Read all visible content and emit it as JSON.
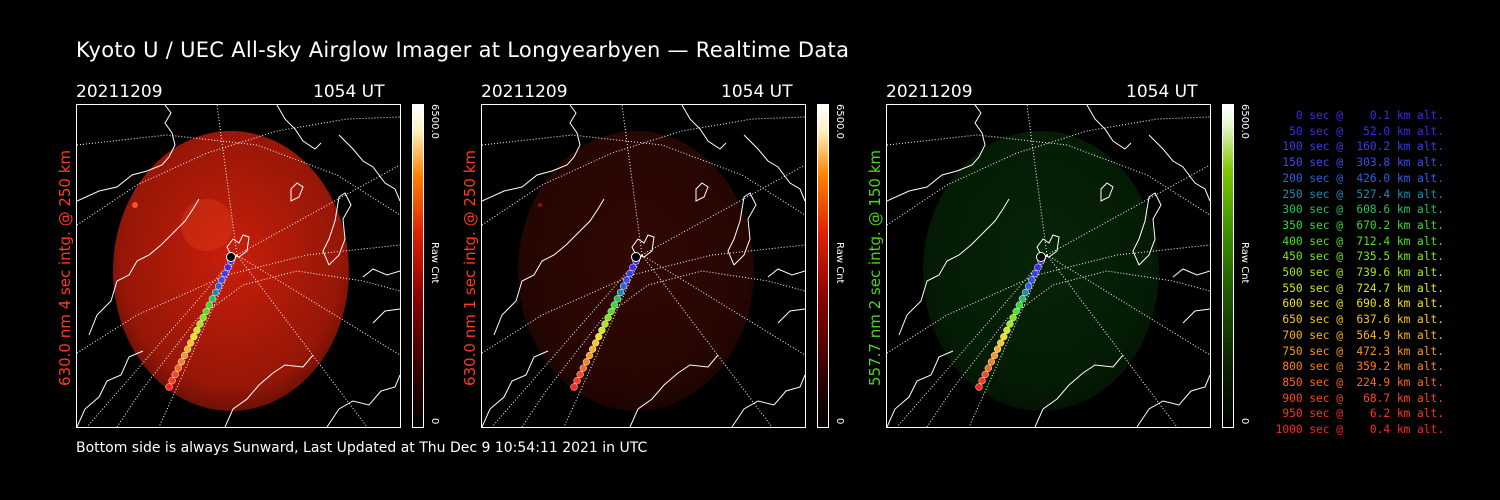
{
  "title": "Kyoto U / UEC All-sky Airglow Imager at Longyearbyen — Realtime Data",
  "panels": [
    {
      "date": "20211209",
      "time": "1054 UT",
      "wavelength_label": "630.0 nm 4 sec intg. @ 250 km",
      "label_color": "#ff3a1e",
      "cbar_max": "6500.0",
      "cbar_min": "0",
      "cbar_unit": "Raw Cnt",
      "channel": "red",
      "glow": 1.0
    },
    {
      "date": "20211209",
      "time": "1054 UT",
      "wavelength_label": "630.0 nm 1 sec intg. @ 250 km",
      "label_color": "#ff3a1e",
      "cbar_max": "6500.0",
      "cbar_min": "0",
      "cbar_unit": "Raw Cnt",
      "channel": "red",
      "glow": 0.25
    },
    {
      "date": "20211209",
      "time": "1054 UT",
      "wavelength_label": "557.7 nm 2 sec intg. @ 150 km",
      "label_color": "#4cd41e",
      "cbar_max": "6500.0",
      "cbar_min": "0",
      "cbar_unit": "Raw Cnt",
      "channel": "green",
      "glow": 0.3
    }
  ],
  "footer": "Bottom side is always Sunward, Last Updated at Thu Dec  9 10:54:11 2021 in UTC",
  "legend": [
    {
      "text": "   0 sec @    0.1 km alt.",
      "color": "#3a2cf0"
    },
    {
      "text": "  50 sec @   52.0 km alt.",
      "color": "#3a2cf0"
    },
    {
      "text": " 100 sec @  160.2 km alt.",
      "color": "#3a3cf0"
    },
    {
      "text": " 150 sec @  303.8 km alt.",
      "color": "#3a4cf0"
    },
    {
      "text": " 200 sec @  426.0 km alt.",
      "color": "#2c60e8"
    },
    {
      "text": " 250 sec @  527.4 km alt.",
      "color": "#1c8cb0"
    },
    {
      "text": " 300 sec @  608.6 km alt.",
      "color": "#22c060"
    },
    {
      "text": " 350 sec @  670.2 km alt.",
      "color": "#3ad830"
    },
    {
      "text": " 400 sec @  712.4 km alt.",
      "color": "#50e020"
    },
    {
      "text": " 450 sec @  735.5 km alt.",
      "color": "#78e81c"
    },
    {
      "text": " 500 sec @  739.6 km alt.",
      "color": "#a4e818"
    },
    {
      "text": " 550 sec @  724.7 km alt.",
      "color": "#d0e81c"
    },
    {
      "text": " 600 sec @  690.8 km alt.",
      "color": "#f0e020"
    },
    {
      "text": " 650 sec @  637.6 km alt.",
      "color": "#f8c820"
    },
    {
      "text": " 700 sec @  564.9 km alt.",
      "color": "#f8b020"
    },
    {
      "text": " 750 sec @  472.3 km alt.",
      "color": "#f89820"
    },
    {
      "text": " 800 sec @  359.2 km alt.",
      "color": "#f88020"
    },
    {
      "text": " 850 sec @  224.9 km alt.",
      "color": "#f86820"
    },
    {
      "text": " 900 sec @   68.7 km alt.",
      "color": "#f84820"
    },
    {
      "text": " 950 sec @    6.2 km alt.",
      "color": "#f83820"
    },
    {
      "text": "1000 sec @    0.4 km alt.",
      "color": "#f82820"
    }
  ]
}
